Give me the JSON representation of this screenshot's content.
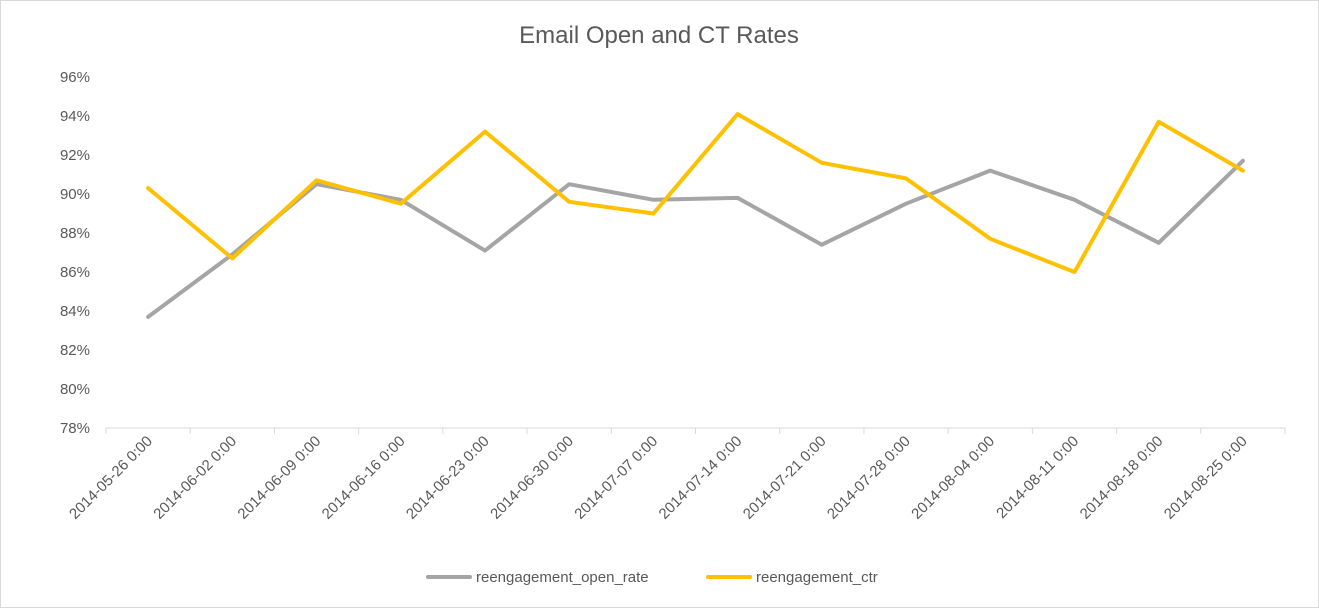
{
  "chart_data": {
    "type": "line",
    "title": "Email Open and CT Rates",
    "xlabel": "",
    "ylabel": "",
    "ylim": [
      0.78,
      0.96
    ],
    "y_tick_step": 0.02,
    "y_tick_format": "percent",
    "grid": false,
    "legend_position": "bottom",
    "categories": [
      "2014-05-26 0:00",
      "2014-06-02 0:00",
      "2014-06-09 0:00",
      "2014-06-16 0:00",
      "2014-06-23 0:00",
      "2014-06-30 0:00",
      "2014-07-07 0:00",
      "2014-07-14 0:00",
      "2014-07-21 0:00",
      "2014-07-28 0:00",
      "2014-08-04 0:00",
      "2014-08-11 0:00",
      "2014-08-18 0:00",
      "2014-08-25 0:00"
    ],
    "series": [
      {
        "name": "reengagement_open_rate",
        "color": "#a5a5a5",
        "values": [
          0.837,
          0.869,
          0.905,
          0.897,
          0.871,
          0.905,
          0.897,
          0.898,
          0.874,
          0.895,
          0.912,
          0.897,
          0.875,
          0.917
        ]
      },
      {
        "name": "reengagement_ctr",
        "color": "#ffc000",
        "values": [
          0.903,
          0.867,
          0.907,
          0.895,
          0.932,
          0.896,
          0.89,
          0.941,
          0.916,
          0.908,
          0.877,
          0.86,
          0.937,
          0.912
        ]
      }
    ]
  }
}
